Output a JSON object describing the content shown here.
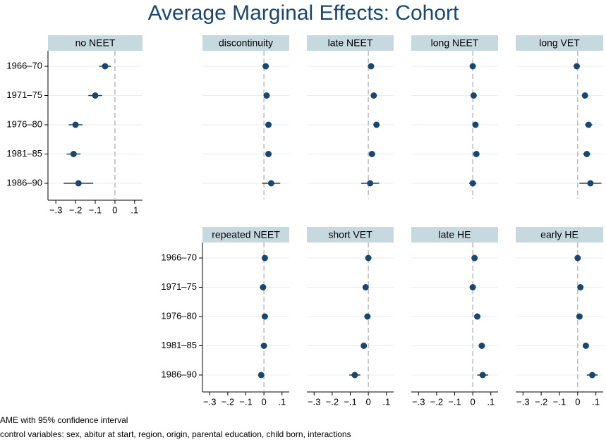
{
  "title": "Average Marginal Effects: Cohort",
  "notes": [
    "AME with 95% confidence interval",
    "control variables: sex, abitur at start, region, origin, parental education, child born, interactions"
  ],
  "chart_data": [
    {
      "type": "dot",
      "title": "no NEET",
      "categories": [
        "1966–70",
        "1971–75",
        "1976–80",
        "1981–85",
        "1986–90"
      ],
      "values": [
        -0.05,
        -0.1,
        -0.2,
        -0.21,
        -0.185
      ],
      "errors": [
        0.03,
        0.035,
        0.035,
        0.035,
        0.075
      ],
      "color": "#1a476f",
      "xlim": [
        -0.34,
        0.14
      ],
      "xticks": [
        {
          "value": -0.3,
          "label": "−.3"
        },
        {
          "value": -0.2,
          "label": "−.2"
        },
        {
          "value": -0.1,
          "label": "−.1"
        },
        0,
        {
          "value": 0.1,
          "label": ".1"
        }
      ],
      "xline": 0,
      "grid": true
    },
    {
      "type": "dot",
      "title": "discontinuity",
      "values": [
        0.01,
        0.015,
        0.025,
        0.025,
        0.04
      ],
      "errors": [
        0.008,
        0.008,
        0.01,
        0.01,
        0.05
      ],
      "color": "#1a476f",
      "xlim": [
        -0.34,
        0.14
      ],
      "xline": 0,
      "grid": true
    },
    {
      "type": "dot",
      "title": "late NEET",
      "values": [
        0.015,
        0.03,
        0.045,
        0.02,
        0.01
      ],
      "errors": [
        0.008,
        0.008,
        0.01,
        0.012,
        0.05
      ],
      "color": "#1a476f",
      "xlim": [
        -0.34,
        0.14
      ],
      "xline": 0,
      "grid": true
    },
    {
      "type": "dot",
      "title": "long NEET",
      "values": [
        0,
        0.005,
        0.015,
        0.02,
        0
      ],
      "errors": [
        0.006,
        0.006,
        0.008,
        0.008,
        0.02
      ],
      "color": "#1a476f",
      "xlim": [
        -0.34,
        0.14
      ],
      "xline": 0,
      "grid": true
    },
    {
      "type": "dot",
      "title": "long VET",
      "values": [
        -0.005,
        0.04,
        0.06,
        0.05,
        0.07
      ],
      "errors": [
        0.01,
        0.015,
        0.02,
        0.02,
        0.06
      ],
      "color": "#1a476f",
      "xlim": [
        -0.34,
        0.14
      ],
      "xline": 0,
      "grid": true
    },
    {
      "type": "dot",
      "title": "repeated NEET",
      "categories": [
        "1966–70",
        "1971–75",
        "1976–80",
        "1981–85",
        "1986–90"
      ],
      "values": [
        0.005,
        -0.005,
        0.005,
        0,
        -0.015
      ],
      "errors": [
        0.006,
        0.006,
        0.006,
        0.006,
        0.015
      ],
      "color": "#1a476f",
      "xlim": [
        -0.34,
        0.14
      ],
      "xticks": [
        {
          "value": -0.3,
          "label": "−.3"
        },
        {
          "value": -0.2,
          "label": "−.2"
        },
        {
          "value": -0.1,
          "label": "−.1"
        },
        0,
        {
          "value": 0.1,
          "label": ".1"
        }
      ],
      "xline": 0,
      "grid": true
    },
    {
      "type": "dot",
      "title": "short VET",
      "values": [
        0,
        -0.015,
        -0.005,
        -0.025,
        -0.075
      ],
      "errors": [
        0.008,
        0.01,
        0.01,
        0.015,
        0.03
      ],
      "color": "#1a476f",
      "xlim": [
        -0.34,
        0.14
      ],
      "xticks": [
        {
          "value": -0.3,
          "label": "−.3"
        },
        {
          "value": -0.2,
          "label": "−.2"
        },
        {
          "value": -0.1,
          "label": "−.1"
        },
        0,
        {
          "value": 0.1,
          "label": ".1"
        }
      ],
      "xline": 0,
      "grid": true
    },
    {
      "type": "dot",
      "title": "late HE",
      "values": [
        0.01,
        0,
        0.025,
        0.05,
        0.055
      ],
      "errors": [
        0.008,
        0.008,
        0.01,
        0.012,
        0.03
      ],
      "color": "#1a476f",
      "xlim": [
        -0.34,
        0.14
      ],
      "xticks": [
        {
          "value": -0.3,
          "label": "−.3"
        },
        {
          "value": -0.2,
          "label": "−.2"
        },
        {
          "value": -0.1,
          "label": "−.1"
        },
        0,
        {
          "value": 0.1,
          "label": ".1"
        }
      ],
      "xline": 0,
      "grid": true
    },
    {
      "type": "dot",
      "title": "early HE",
      "values": [
        0,
        0.015,
        0.01,
        0.045,
        0.08
      ],
      "errors": [
        0.006,
        0.008,
        0.008,
        0.015,
        0.03
      ],
      "color": "#1a476f",
      "xlim": [
        -0.34,
        0.14
      ],
      "xticks": [
        {
          "value": -0.3,
          "label": "−.3"
        },
        {
          "value": -0.2,
          "label": "−.2"
        },
        {
          "value": -0.1,
          "label": "−.1"
        },
        0,
        {
          "value": 0.1,
          "label": ".1"
        }
      ],
      "xline": 0,
      "grid": true
    }
  ]
}
